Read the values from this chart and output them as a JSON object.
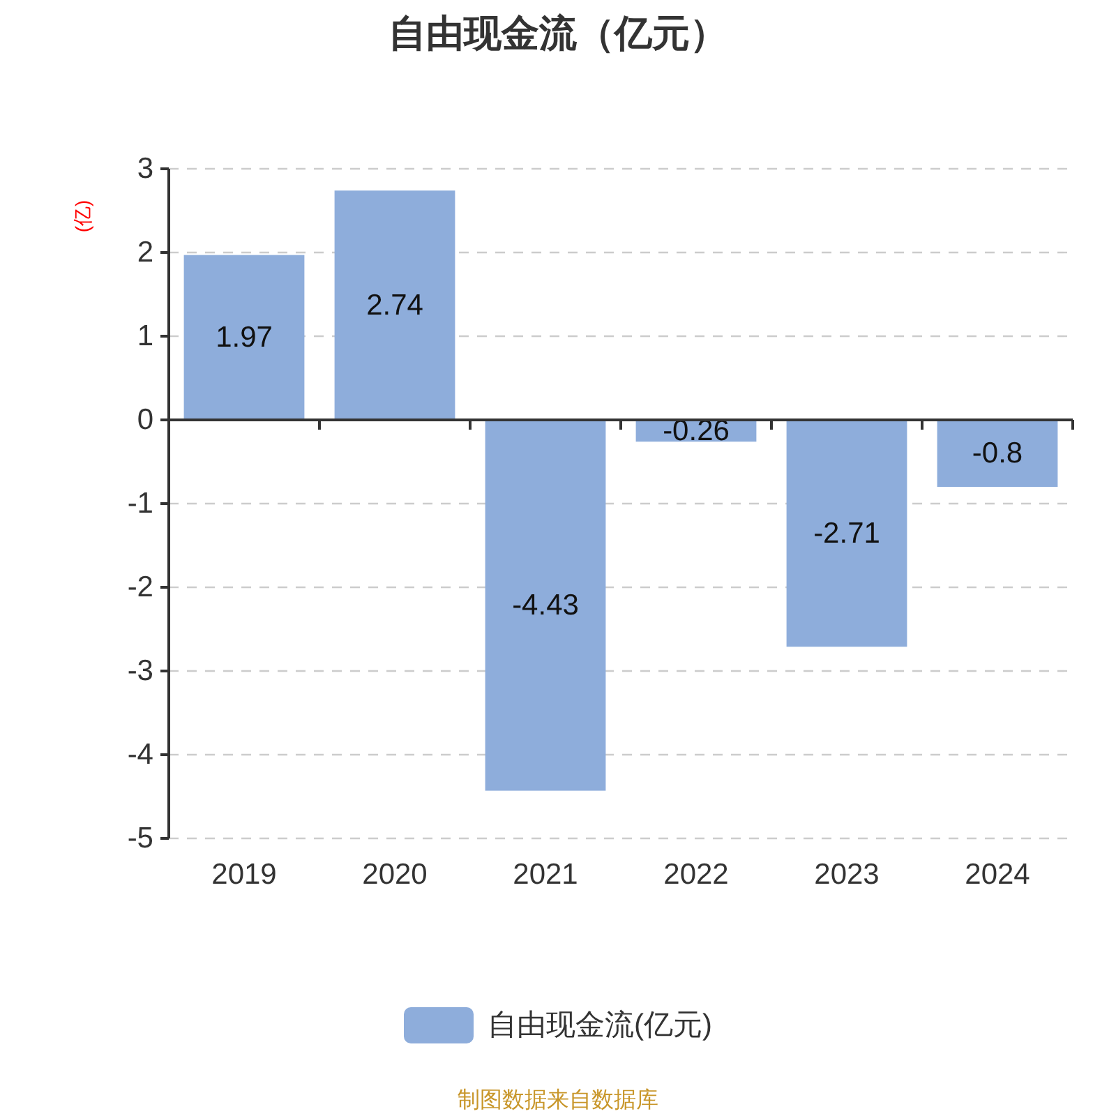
{
  "chart_data": {
    "type": "bar",
    "title": "自由现金流（亿元）",
    "ylabel": "(亿)",
    "categories": [
      "2019",
      "2020",
      "2021",
      "2022",
      "2023",
      "2024"
    ],
    "series": [
      {
        "name": "自由现金流(亿元)",
        "color": "#8eaddb",
        "values": [
          1.97,
          2.74,
          -4.43,
          -0.26,
          -2.71,
          -0.8
        ]
      }
    ],
    "ylim": [
      -5,
      3
    ],
    "yticks": [
      -5,
      -4,
      -3,
      -2,
      -1,
      0,
      1,
      2,
      3
    ],
    "grid": "y",
    "legend": "bottom",
    "data_labels": true,
    "annotations": [
      "制图数据来自数据库"
    ]
  }
}
